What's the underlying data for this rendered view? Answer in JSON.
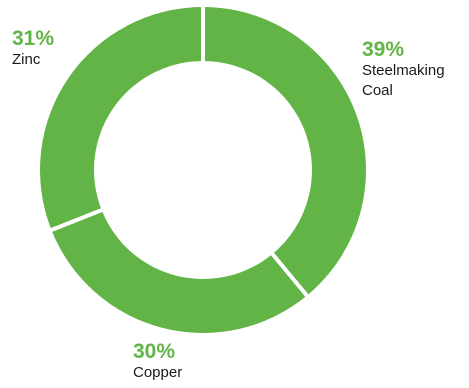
{
  "chart_data": {
    "type": "pie",
    "donut": true,
    "start_angle_deg": 0,
    "direction": "clockwise",
    "color": "#62b446",
    "separator_color": "#ffffff",
    "slices": [
      {
        "label": "Steelmaking Coal",
        "label_lines": [
          "Steelmaking",
          "Coal"
        ],
        "value": 39,
        "value_label": "39%"
      },
      {
        "label": "Copper",
        "label_lines": [
          "Copper"
        ],
        "value": 30,
        "value_label": "30%"
      },
      {
        "label": "Zinc",
        "label_lines": [
          "Zinc"
        ],
        "value": 31,
        "value_label": "31%"
      }
    ],
    "legend": "none",
    "title": ""
  },
  "labels": {
    "coal": {
      "pct": "39%",
      "line1": "Steelmaking",
      "line2": "Coal"
    },
    "copper": {
      "pct": "30%",
      "line1": "Copper"
    },
    "zinc": {
      "pct": "31%",
      "line1": "Zinc"
    }
  }
}
